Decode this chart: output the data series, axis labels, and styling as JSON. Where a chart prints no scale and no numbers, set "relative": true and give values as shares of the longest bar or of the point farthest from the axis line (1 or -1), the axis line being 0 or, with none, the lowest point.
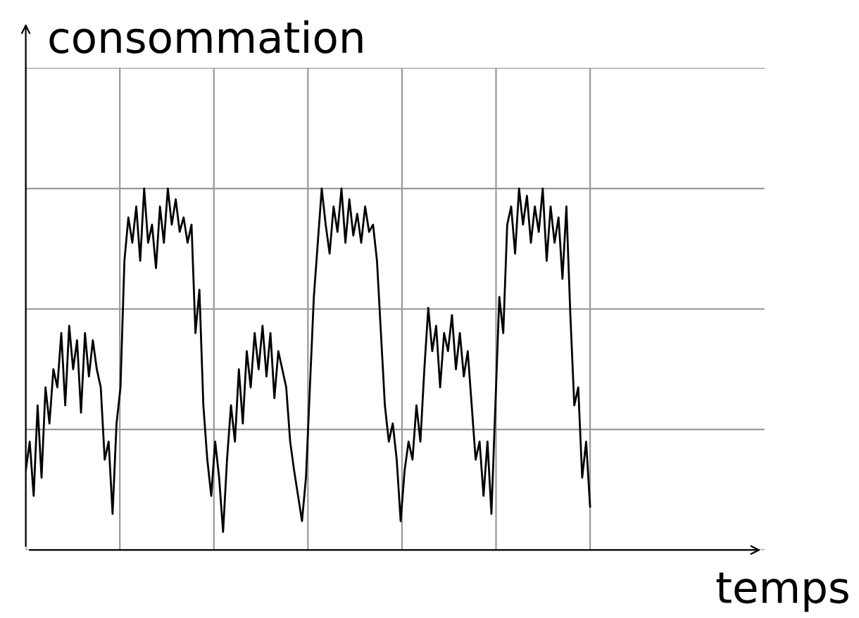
{
  "chart_data": {
    "type": "line",
    "relative": true,
    "xlabel": "temps",
    "ylabel": "consommation",
    "grid": true,
    "tick_labels": false,
    "line_style": "solid",
    "marker": "none",
    "categories": [
      null,
      null,
      null,
      null,
      null,
      null,
      null,
      null,
      null,
      null,
      null,
      null,
      null,
      null,
      null,
      null,
      null,
      null,
      null,
      null,
      null,
      null,
      null,
      null,
      null,
      null,
      null,
      null,
      null,
      null,
      null,
      null,
      null,
      null,
      null,
      null,
      null,
      null,
      null,
      null,
      null,
      null,
      null,
      null,
      null,
      null,
      null,
      null,
      null,
      null,
      null,
      null,
      null,
      null,
      null,
      null,
      null,
      null,
      null,
      null,
      null,
      null,
      null,
      null,
      null,
      null,
      null,
      null,
      null,
      null,
      null,
      null,
      null,
      null,
      null,
      null,
      null,
      null,
      null,
      null,
      null,
      null,
      null,
      null,
      null,
      null,
      null,
      null,
      null,
      null,
      null,
      null,
      null,
      null,
      null,
      null,
      null,
      null,
      null,
      null,
      null,
      null,
      null,
      null,
      null,
      null,
      null,
      null,
      null,
      null,
      null,
      null,
      null,
      null,
      null,
      null,
      null,
      null,
      null,
      null,
      null,
      null,
      null,
      null,
      null,
      null,
      null,
      null,
      null,
      null,
      null,
      null,
      null,
      null,
      null,
      null,
      null,
      null,
      null,
      null,
      null,
      null,
      null,
      null
    ],
    "series": [
      {
        "color": "#000000",
        "values": [
          0.22,
          0.3,
          0.15,
          0.4,
          0.2,
          0.45,
          0.35,
          0.5,
          0.45,
          0.6,
          0.4,
          0.62,
          0.5,
          0.58,
          0.38,
          0.6,
          0.48,
          0.58,
          0.5,
          0.45,
          0.25,
          0.3,
          0.1,
          0.35,
          0.45,
          0.8,
          0.92,
          0.85,
          0.95,
          0.8,
          1.0,
          0.85,
          0.9,
          0.78,
          0.95,
          0.85,
          1.0,
          0.9,
          0.97,
          0.88,
          0.92,
          0.85,
          0.9,
          0.6,
          0.72,
          0.4,
          0.25,
          0.15,
          0.3,
          0.2,
          0.05,
          0.25,
          0.4,
          0.3,
          0.5,
          0.35,
          0.55,
          0.45,
          0.6,
          0.5,
          0.62,
          0.48,
          0.6,
          0.42,
          0.55,
          0.5,
          0.45,
          0.3,
          0.22,
          0.15,
          0.08,
          0.2,
          0.45,
          0.7,
          0.85,
          1.0,
          0.9,
          0.82,
          0.95,
          0.88,
          1.0,
          0.85,
          0.97,
          0.87,
          0.93,
          0.85,
          0.95,
          0.88,
          0.9,
          0.8,
          0.6,
          0.4,
          0.3,
          0.35,
          0.25,
          0.08,
          0.22,
          0.3,
          0.25,
          0.4,
          0.3,
          0.5,
          0.67,
          0.55,
          0.62,
          0.45,
          0.6,
          0.55,
          0.65,
          0.5,
          0.6,
          0.48,
          0.55,
          0.4,
          0.25,
          0.3,
          0.15,
          0.3,
          0.1,
          0.4,
          0.7,
          0.6,
          0.9,
          0.95,
          0.82,
          1.0,
          0.9,
          0.98,
          0.85,
          0.95,
          0.88,
          1.0,
          0.8,
          0.95,
          0.85,
          0.92,
          0.75,
          0.95,
          0.65,
          0.4,
          0.45,
          0.2,
          0.3,
          0.12
        ]
      }
    ]
  }
}
